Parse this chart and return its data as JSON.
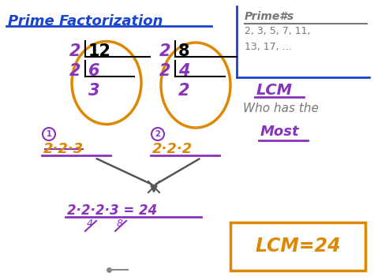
{
  "bg_color": "#ffffff",
  "title_text": "Prime Factorization",
  "title_color": "#1a44cc",
  "prime_box_color": "#555599",
  "prime_box_text1": "Prime#s",
  "prime_box_text2": "2, 3, 5, 7, 11,",
  "prime_box_text3": "13, 17, ...",
  "lcm_label": "LCM",
  "who_has_text": "Who has the",
  "most_text": "Most",
  "purple": "#8833bb",
  "orange": "#dd8800",
  "gray": "#777777",
  "blue": "#1a44cc",
  "dark_gray": "#555555"
}
